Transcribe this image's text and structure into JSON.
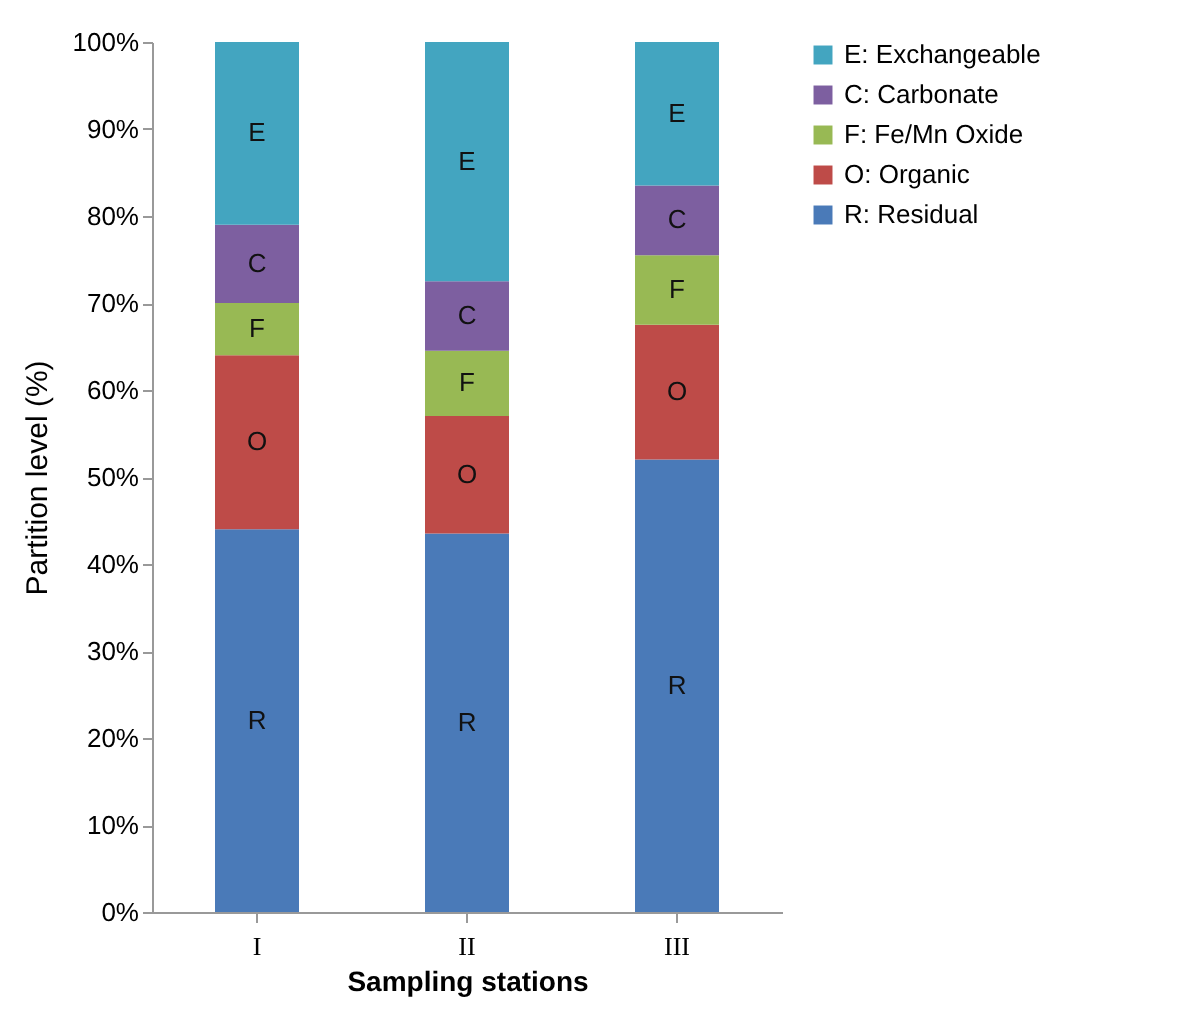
{
  "chart_data": {
    "type": "bar",
    "stacked": true,
    "xlabel": "Sampling stations",
    "ylabel": "Partition level (%)",
    "categories": [
      "I",
      "II",
      "III"
    ],
    "series": [
      {
        "name": "R: Residual",
        "color": "#4a7ab8",
        "values": [
          44,
          43.5,
          52
        ],
        "value_labels": [
          "R",
          "R",
          "R"
        ]
      },
      {
        "name": "O: Organic",
        "color": "#be4b48",
        "values": [
          20,
          13.5,
          15.5
        ],
        "value_labels": [
          "O",
          "O",
          "O"
        ]
      },
      {
        "name": "F: Fe/Mn Oxide",
        "color": "#98b954",
        "values": [
          6,
          7.5,
          8
        ],
        "value_labels": [
          "F",
          "F",
          "F"
        ]
      },
      {
        "name": "C: Carbonate",
        "color": "#7d5fa0",
        "values": [
          9,
          8,
          8
        ],
        "value_labels": [
          "C",
          "C",
          "C"
        ]
      },
      {
        "name": "E: Exchangeable",
        "color": "#43a5c0",
        "values": [
          21,
          27.5,
          16.5
        ],
        "value_labels": [
          "E",
          "E",
          "E"
        ]
      }
    ],
    "ylim": [
      0,
      100
    ],
    "yticks": [
      {
        "value": 0,
        "label": "0%"
      },
      {
        "value": 10,
        "label": "10%"
      },
      {
        "value": 20,
        "label": "20%"
      },
      {
        "value": 30,
        "label": "30%"
      },
      {
        "value": 40,
        "label": "40%"
      },
      {
        "value": 50,
        "label": "50%"
      },
      {
        "value": 60,
        "label": "60%"
      },
      {
        "value": 70,
        "label": "70%"
      },
      {
        "value": 80,
        "label": "80%"
      },
      {
        "value": 90,
        "label": "90%"
      },
      {
        "value": 100,
        "label": "100%"
      }
    ],
    "grid": false,
    "legend": "right"
  }
}
